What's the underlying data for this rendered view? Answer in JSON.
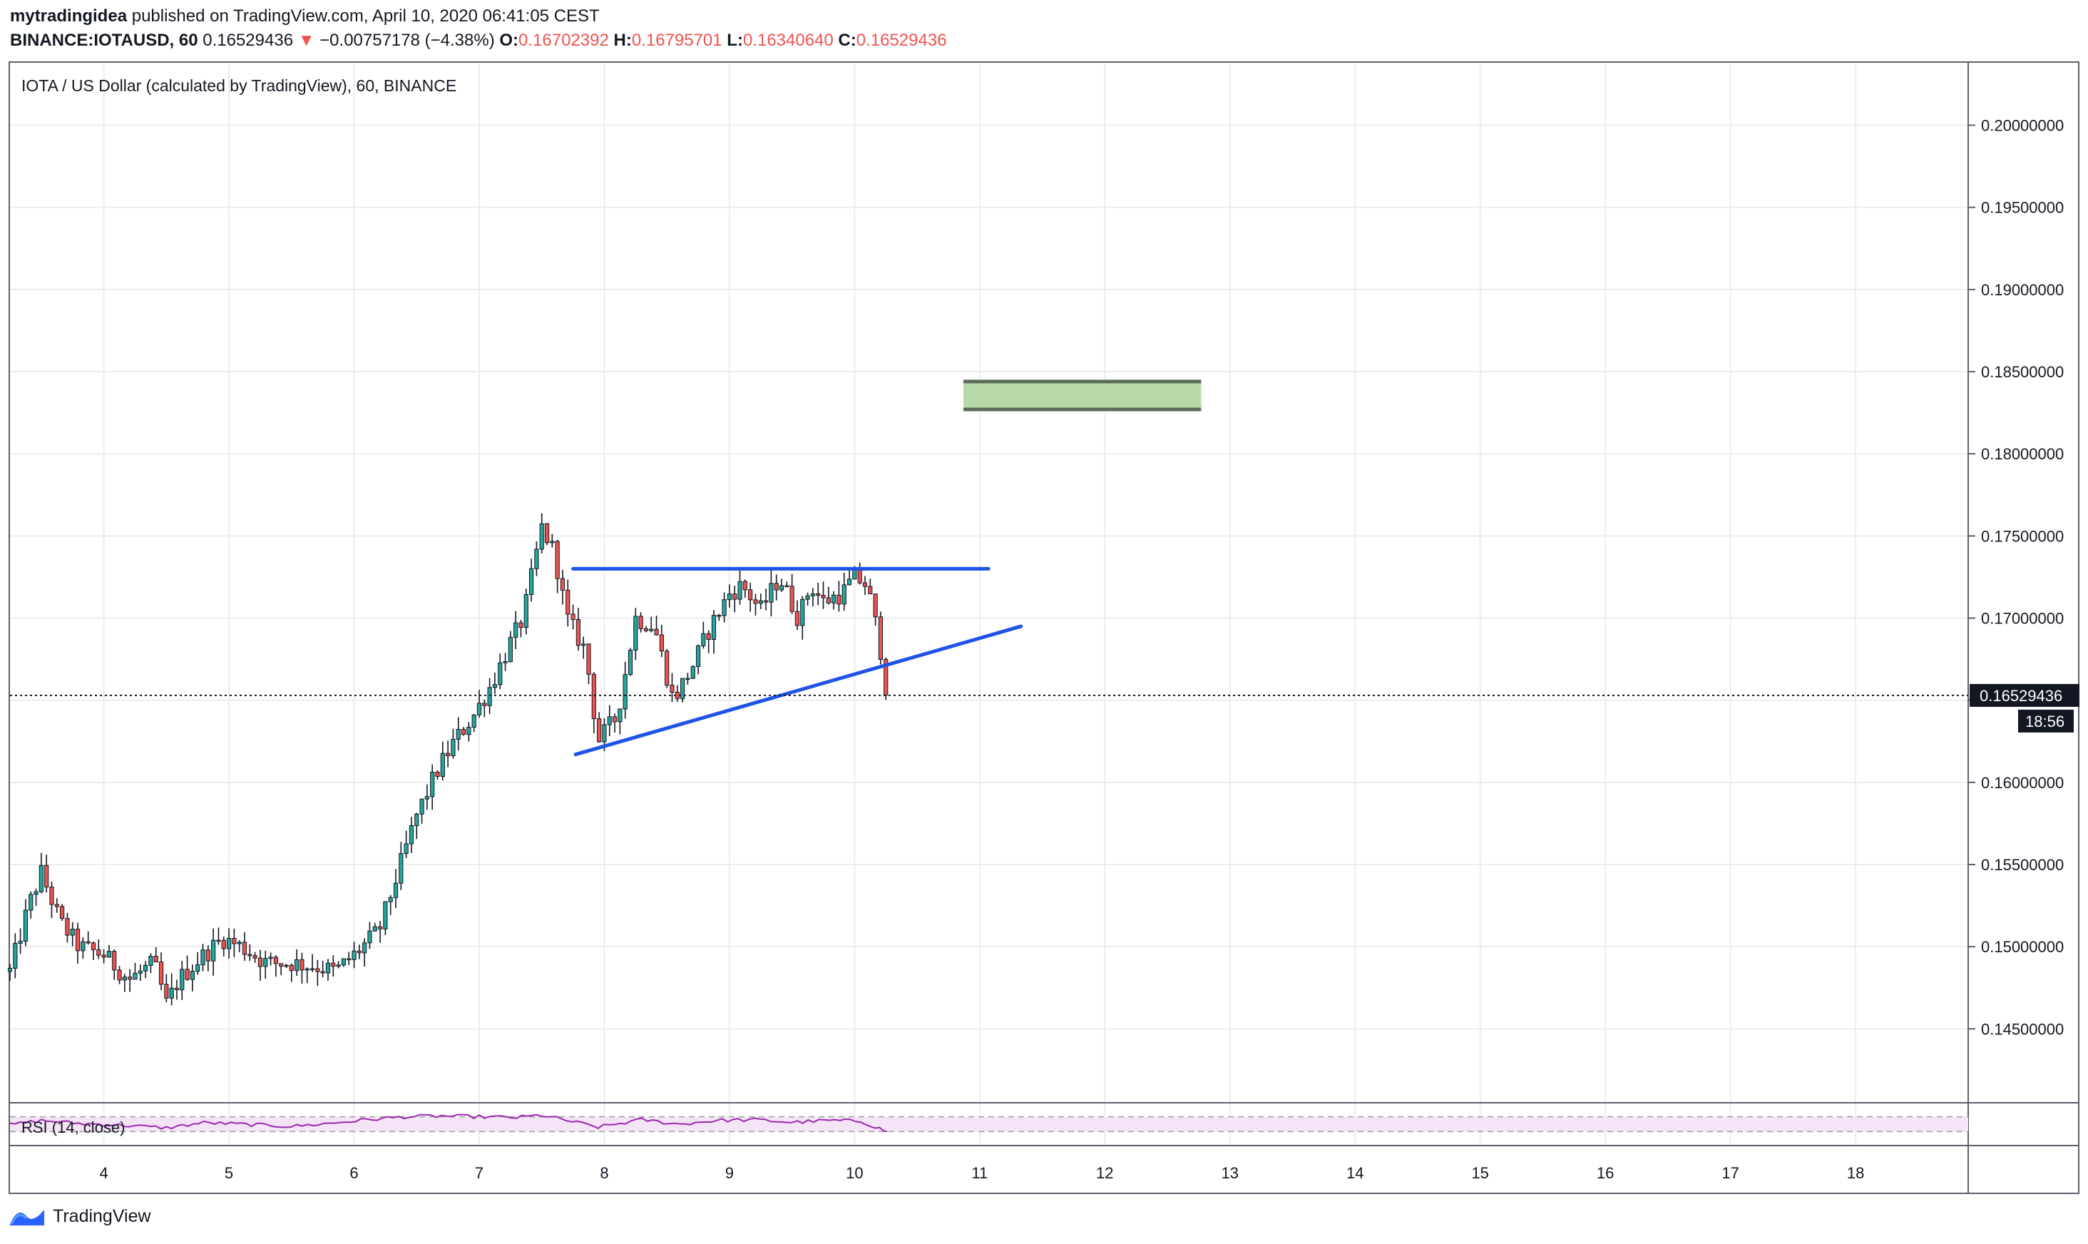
{
  "header": {
    "author": "mytradingidea",
    "published_text": " published on TradingView.com, April 10, 2020 06:41:05 CEST",
    "symbol": "BINANCE:IOTAUSD, 60",
    "last": "0.16529436",
    "change": "−0.00757178 (−4.38%)",
    "o_label": "O:",
    "o": "0.16702392",
    "h_label": "H:",
    "h": "0.16795701",
    "l_label": "L:",
    "l": "0.16340640",
    "c_label": "C:",
    "c": "0.16529436"
  },
  "footer": {
    "brand": "TradingView",
    "logo_icon": "tradingview-logo-icon"
  },
  "colors": {
    "up": "#26a69a",
    "down": "#ef5350",
    "candle": "#131722",
    "trendline": "#1e53e5",
    "zone_fill": "#b7d9a8",
    "zone_border": "#5b6b5b",
    "rsi_line": "#9c27b0",
    "rsi_band": "#f3e5f5",
    "grid": "#e9eef2"
  },
  "chart_data": {
    "type": "candlestick",
    "title": "IOTA / US Dollar (calculated by TradingView), 60, BINANCE",
    "ylim": [
      0.1405,
      0.2038
    ],
    "x_range_days": [
      3.25,
      18.9
    ],
    "x_ticks": [
      "4",
      "5",
      "6",
      "7",
      "8",
      "9",
      "10",
      "11",
      "12",
      "13",
      "14",
      "15",
      "16",
      "17",
      "18"
    ],
    "x_tick_values": [
      4,
      5,
      6,
      7,
      8,
      9,
      10,
      11,
      12,
      13,
      14,
      15,
      16,
      17,
      18
    ],
    "y_ticks": [
      "0.14500000",
      "0.15000000",
      "0.15500000",
      "0.16000000",
      "0.16500000",
      "0.17000000",
      "0.17500000",
      "0.18000000",
      "0.18500000",
      "0.19000000",
      "0.19500000",
      "0.20000000"
    ],
    "y_tick_values": [
      0.145,
      0.15,
      0.155,
      0.16,
      0.165,
      0.17,
      0.175,
      0.18,
      0.185,
      0.19,
      0.195,
      0.2
    ],
    "price_path": [
      [
        3.25,
        0.1485
      ],
      [
        3.4,
        0.1525
      ],
      [
        3.5,
        0.1545
      ],
      [
        3.65,
        0.1515
      ],
      [
        3.8,
        0.15
      ],
      [
        4.0,
        0.1495
      ],
      [
        4.2,
        0.148
      ],
      [
        4.4,
        0.149
      ],
      [
        4.5,
        0.1465
      ],
      [
        4.6,
        0.148
      ],
      [
        4.8,
        0.1495
      ],
      [
        4.95,
        0.1505
      ],
      [
        5.1,
        0.15
      ],
      [
        5.3,
        0.149
      ],
      [
        5.5,
        0.149
      ],
      [
        5.7,
        0.1488
      ],
      [
        5.85,
        0.1485
      ],
      [
        6.0,
        0.1495
      ],
      [
        6.2,
        0.151
      ],
      [
        6.35,
        0.1545
      ],
      [
        6.5,
        0.158
      ],
      [
        6.65,
        0.1605
      ],
      [
        6.8,
        0.1625
      ],
      [
        6.95,
        0.164
      ],
      [
        7.1,
        0.166
      ],
      [
        7.25,
        0.1685
      ],
      [
        7.35,
        0.17
      ],
      [
        7.5,
        0.1755
      ],
      [
        7.6,
        0.174
      ],
      [
        7.7,
        0.17
      ],
      [
        7.85,
        0.168
      ],
      [
        7.95,
        0.1625
      ],
      [
        8.1,
        0.164
      ],
      [
        8.25,
        0.17
      ],
      [
        8.4,
        0.1695
      ],
      [
        8.55,
        0.165
      ],
      [
        8.7,
        0.167
      ],
      [
        8.85,
        0.1695
      ],
      [
        9.0,
        0.1715
      ],
      [
        9.1,
        0.172
      ],
      [
        9.25,
        0.1705
      ],
      [
        9.4,
        0.1725
      ],
      [
        9.55,
        0.17
      ],
      [
        9.65,
        0.172
      ],
      [
        9.75,
        0.171
      ],
      [
        9.9,
        0.1715
      ],
      [
        10.0,
        0.1725
      ],
      [
        10.1,
        0.172
      ],
      [
        10.2,
        0.1685
      ],
      [
        10.26,
        0.1653
      ]
    ],
    "current_price": "0.16529436",
    "current_price_value": 0.16529436,
    "countdown": "18:56",
    "trendlines": [
      {
        "x1": 7.75,
        "y1": 0.173,
        "x2": 11.07,
        "y2": 0.173
      },
      {
        "x1": 7.77,
        "y1": 0.1617,
        "x2": 11.33,
        "y2": 0.1695
      }
    ],
    "target_zone": {
      "x1": 10.87,
      "x2": 12.77,
      "y_low": 0.1827,
      "y_high": 0.1844
    },
    "indicator": {
      "label": "RSI (14, close)",
      "upper_band": 70,
      "lower_band": 30,
      "values": [
        [
          3.25,
          48
        ],
        [
          3.5,
          60
        ],
        [
          3.8,
          52
        ],
        [
          4.2,
          46
        ],
        [
          4.5,
          40
        ],
        [
          4.8,
          54
        ],
        [
          5.1,
          50
        ],
        [
          5.5,
          44
        ],
        [
          5.8,
          52
        ],
        [
          6.1,
          62
        ],
        [
          6.4,
          70
        ],
        [
          6.7,
          72
        ],
        [
          7.0,
          70
        ],
        [
          7.3,
          68
        ],
        [
          7.5,
          74
        ],
        [
          7.7,
          60
        ],
        [
          7.95,
          42
        ],
        [
          8.3,
          62
        ],
        [
          8.6,
          50
        ],
        [
          8.9,
          60
        ],
        [
          9.2,
          62
        ],
        [
          9.5,
          55
        ],
        [
          9.8,
          60
        ],
        [
          10.05,
          58
        ],
        [
          10.2,
          38
        ],
        [
          10.26,
          30
        ]
      ]
    }
  }
}
